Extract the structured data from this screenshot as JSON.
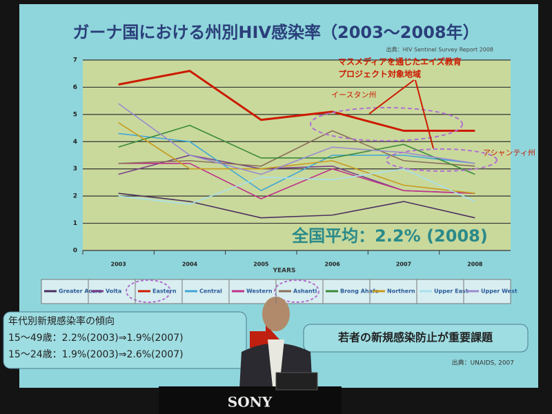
{
  "chart_data": {
    "type": "line",
    "title": "ガーナ国における州別HIV感染率（2003～2008年）",
    "source": "出典：HIV Sentinel Survey Report 2008",
    "x_label": "YEARS",
    "categories": [
      "2003",
      "2004",
      "2005",
      "2006",
      "2007",
      "2008"
    ],
    "ylim": [
      0,
      7
    ],
    "yticks": [
      0,
      1,
      2,
      3,
      4,
      5,
      6,
      7
    ],
    "grid": true,
    "legend": "bottom",
    "series": [
      {
        "name": "Greater Accra",
        "color": "#4a2f5e",
        "values": [
          2.1,
          1.8,
          1.2,
          1.3,
          1.8,
          1.2
        ]
      },
      {
        "name": "Volta",
        "color": "#7a3f8a",
        "values": [
          2.8,
          3.5,
          3.0,
          3.1,
          2.2,
          2.1
        ]
      },
      {
        "name": "Eastern",
        "color": "#cc1a00",
        "values": [
          6.1,
          6.6,
          4.8,
          5.1,
          4.4,
          4.4
        ]
      },
      {
        "name": "Central",
        "color": "#3fa6d8",
        "values": [
          4.3,
          4.0,
          2.2,
          3.5,
          3.5,
          3.2
        ]
      },
      {
        "name": "Western",
        "color": "#c0308a",
        "values": [
          3.2,
          3.2,
          1.9,
          3.0,
          2.2,
          2.1
        ]
      },
      {
        "name": "Ashanti",
        "color": "#8a6f5a",
        "values": [
          3.2,
          3.3,
          3.1,
          4.4,
          3.3,
          3.1
        ]
      },
      {
        "name": "Brong Ahafo",
        "color": "#3a8a3a",
        "values": [
          3.8,
          4.6,
          3.4,
          3.4,
          3.9,
          2.8
        ]
      },
      {
        "name": "Northern",
        "color": "#c89a1a",
        "values": [
          4.7,
          3.0,
          3.0,
          3.3,
          2.4,
          2.1
        ]
      },
      {
        "name": "Upper East",
        "color": "#a8e0ee",
        "values": [
          2.0,
          1.7,
          2.7,
          2.6,
          3.0,
          1.8
        ]
      },
      {
        "name": "Upper West",
        "color": "#9a8ad0",
        "values": [
          5.4,
          3.5,
          2.8,
          3.8,
          3.6,
          3.2
        ]
      }
    ],
    "annotations": [
      "マスメディアを通じたエイズ教育",
      "プロジェクト対象地域",
      "イースタン州",
      "アシャンティ州",
      "全国平均：2.2% (2008)"
    ]
  },
  "slide": {
    "trend_title": "年代別新規感染率の傾向",
    "trend_lines": [
      "15～49歳：2.2%(2003)⇒1.9%(2007)",
      "15～24歳：1.9%(2003)⇒2.6%(2007)"
    ],
    "message": "若者の新規感染防止が重要課題",
    "source": "出典：UNAIDS, 2007"
  },
  "podium": {
    "logo": "SONY"
  }
}
